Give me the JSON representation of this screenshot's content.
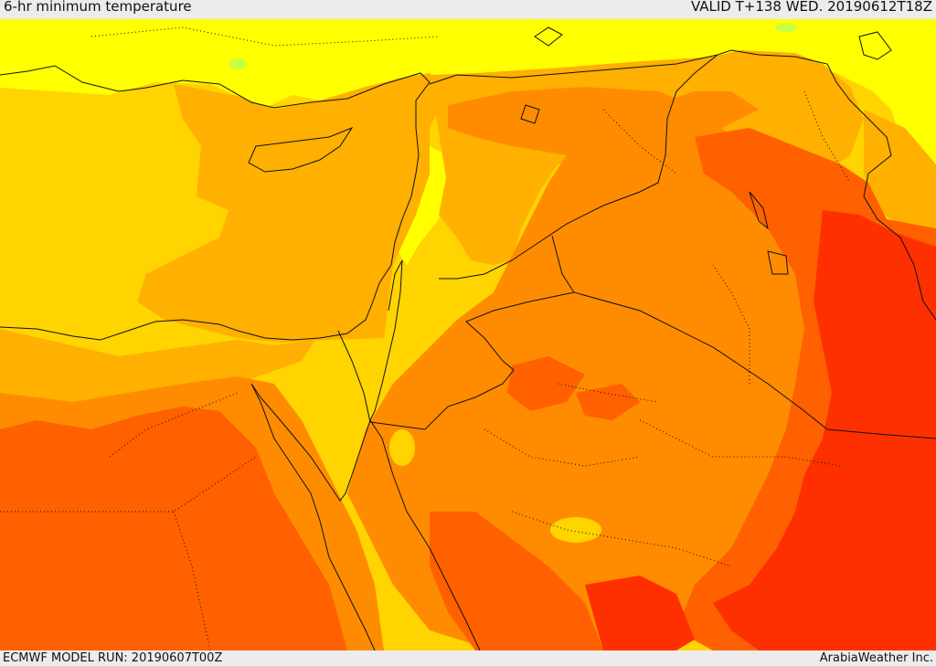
{
  "header": {
    "title": "6-hr minimum temperature",
    "valid_time": "VALID T+138 WED. 20190612T18Z"
  },
  "footer": {
    "model_run": "ECMWF MODEL RUN: 20190607T00Z",
    "credit": "ArabiaWeather Inc."
  },
  "map": {
    "colors": {
      "coolest": "#ffff00",
      "cool": "#ffd400",
      "mild": "#ffb000",
      "warm": "#ff8c00",
      "hot": "#ff6000",
      "hottest": "#ff3000",
      "green_spots": "#c8ff40",
      "borders": "#111111"
    }
  }
}
